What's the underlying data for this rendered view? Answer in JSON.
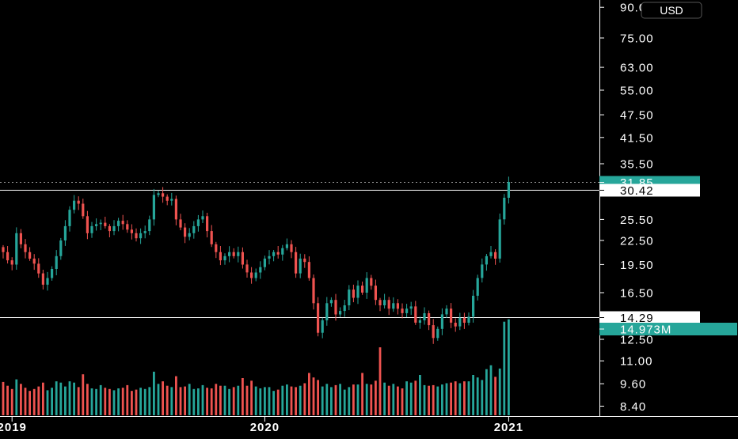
{
  "currency_button": "USD",
  "chart_data": {
    "type": "candlestick",
    "scale": "log",
    "currency": "USD",
    "x_tick_labels": [
      "2019",
      "2020",
      "2021"
    ],
    "y_tick_labels": [
      "90.00",
      "75.00",
      "63.00",
      "55.00",
      "47.50",
      "41.50",
      "35.50",
      "25.50",
      "22.50",
      "19.50",
      "16.50",
      "12.50",
      "11.00",
      "9.60",
      "8.40"
    ],
    "price_labels": [
      {
        "text": "31.85",
        "kind": "last-price",
        "value": 31.85,
        "color": "#26a69a"
      },
      {
        "text": "30.42",
        "kind": "horizontal-line",
        "value": 30.42,
        "color": "#ffffff"
      },
      {
        "text": "14.29",
        "kind": "horizontal-line",
        "value": 14.29,
        "color": "#ffffff"
      },
      {
        "text": "14.973M",
        "kind": "volume",
        "value": 14973000,
        "color": "#26a69a"
      }
    ],
    "horizontal_lines": [
      30.42,
      14.29
    ],
    "colors": {
      "up": "#26a69a",
      "down": "#ef5350",
      "background": "#000000",
      "axis_text": "#ffffff"
    },
    "weekly_closes": [
      21.0,
      20.0,
      19.5,
      23.5,
      22.0,
      21.0,
      20.2,
      19.6,
      18.5,
      17.3,
      18.0,
      19.0,
      20.5,
      22.5,
      24.5,
      27.0,
      28.5,
      28.0,
      26.0,
      23.5,
      24.5,
      24.8,
      25.0,
      24.5,
      23.8,
      24.5,
      25.3,
      24.8,
      24.0,
      23.5,
      22.8,
      23.5,
      23.8,
      25.5,
      29.5,
      29.8,
      29.2,
      28.5,
      28.8,
      25.5,
      24.3,
      23.0,
      23.5,
      24.5,
      25.5,
      26.0,
      23.8,
      22.0,
      21.0,
      20.0,
      20.5,
      21.0,
      20.5,
      21.0,
      19.5,
      18.6,
      18.0,
      18.6,
      19.2,
      20.2,
      20.5,
      21.0,
      20.7,
      21.5,
      22.0,
      21.0,
      18.5,
      20.2,
      19.8,
      18.0,
      15.5,
      13.0,
      14.0,
      15.5,
      15.8,
      14.5,
      14.8,
      15.3,
      16.8,
      16.0,
      17.2,
      16.5,
      18.0,
      17.2,
      15.8,
      15.3,
      15.8,
      15.0,
      15.5,
      15.0,
      14.6,
      15.0,
      15.2,
      13.8,
      14.0,
      14.6,
      13.6,
      12.6,
      13.3,
      14.5,
      15.0,
      13.8,
      13.5,
      14.2,
      13.8,
      14.3,
      16.2,
      18.0,
      19.5,
      20.5,
      21.0,
      20.2,
      25.5,
      29.0,
      31.85
    ],
    "weekly_volumes_millions": [
      5.2,
      4.6,
      4.1,
      5.6,
      4.9,
      4.3,
      3.8,
      4.1,
      4.5,
      5.1,
      3.9,
      4.3,
      5.3,
      5.1,
      4.5,
      5.3,
      5.1,
      4.4,
      6.4,
      4.9,
      4.2,
      4.1,
      4.7,
      4.3,
      4.1,
      3.9,
      4.2,
      4.3,
      4.7,
      3.8,
      4.0,
      4.3,
      4.1,
      4.4,
      6.8,
      4.9,
      5.3,
      4.6,
      4.4,
      6.1,
      4.4,
      4.5,
      4.9,
      4.1,
      4.2,
      4.7,
      4.3,
      4.2,
      4.9,
      4.6,
      4.6,
      4.1,
      4.4,
      4.6,
      5.8,
      4.6,
      5.4,
      4.5,
      4.2,
      4.4,
      4.4,
      3.8,
      4.0,
      4.6,
      4.8,
      4.5,
      4.4,
      4.6,
      5.0,
      6.6,
      5.9,
      5.5,
      4.5,
      4.9,
      4.4,
      4.7,
      4.9,
      4.0,
      4.4,
      4.8,
      4.8,
      6.6,
      4.9,
      4.8,
      5.4,
      10.6,
      5.1,
      4.6,
      4.9,
      4.5,
      4.2,
      5.3,
      5.1,
      5.4,
      6.3,
      4.7,
      4.6,
      4.7,
      4.5,
      4.8,
      5.0,
      5.1,
      5.3,
      5.0,
      5.3,
      5.3,
      6.3,
      5.9,
      5.5,
      7.2,
      7.8,
      6.0,
      7.3,
      14.6,
      14.973
    ]
  }
}
